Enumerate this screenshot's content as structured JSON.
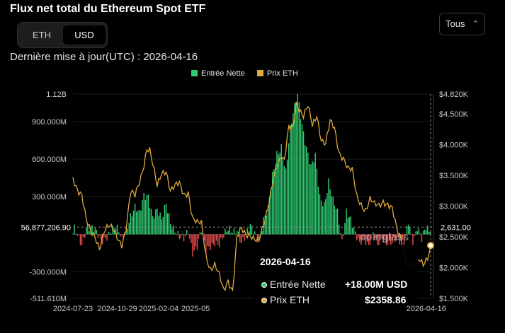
{
  "header": {
    "title": "Flux net total du Ethereum Spot ETF",
    "currency_options": [
      "ETH",
      "USD"
    ],
    "currency_selected": "USD",
    "range_label": "Tous",
    "updated_label": "Dernière mise à jour(UTC) : 2026-04-16"
  },
  "legend": {
    "inflow": "Entrée Nette",
    "price": "Prix ETH"
  },
  "colors": {
    "inflow": "#2ecc71",
    "outflow": "#e74c4c",
    "price": "#e0a93b",
    "background": "#000000"
  },
  "watermark": "coinglass",
  "tooltip": {
    "date": "2026-04-16",
    "inflow_label": "Entrée Nette",
    "inflow_value": "+18.00M USD",
    "price_label": "Prix ETH",
    "price_value": "$2358.86"
  },
  "chart_data": {
    "type": "bar+line",
    "title": "Flux net total du Ethereum Spot ETF",
    "x_ticks": [
      "2024-07-23",
      "2024-10-29",
      "2025-02-04",
      "2025-05",
      "2026-04-16"
    ],
    "y_left_ticks": [
      "1.12B",
      "900.000M",
      "600.000M",
      "300.000M",
      "-300.000M",
      "-511.610M"
    ],
    "y_left_tick_values": [
      1120000000,
      900000000,
      600000000,
      300000000,
      -300000000,
      -511610000
    ],
    "y_left_range": [
      -511610000,
      1120000000
    ],
    "y_right_ticks": [
      "$4.820K",
      "$4.500K",
      "$4.000K",
      "$3.500K",
      "$3.000K",
      "$2.500K",
      "$2.000K",
      "$1.500K"
    ],
    "y_right_tick_values": [
      4820,
      4500,
      4000,
      3500,
      3000,
      2500,
      2000,
      1500
    ],
    "y_right_range": [
      1500,
      4820
    ],
    "crosshair": {
      "left_label": "56,877,206.90",
      "left_value": 56877206.9,
      "right_label": "2,631.00",
      "right_value": 2631
    },
    "price_anchors": [
      [
        0,
        3450
      ],
      [
        3,
        3300
      ],
      [
        6,
        3200
      ],
      [
        9,
        2750
      ],
      [
        12,
        2550
      ],
      [
        15,
        2500
      ],
      [
        18,
        2350
      ],
      [
        21,
        2600
      ],
      [
        24,
        2650
      ],
      [
        27,
        2600
      ],
      [
        30,
        2500
      ],
      [
        33,
        2400
      ],
      [
        36,
        2650
      ],
      [
        39,
        3200
      ],
      [
        42,
        3150
      ],
      [
        45,
        3400
      ],
      [
        48,
        3700
      ],
      [
        50,
        3950
      ],
      [
        52,
        3900
      ],
      [
        54,
        3650
      ],
      [
        57,
        3300
      ],
      [
        60,
        3550
      ],
      [
        63,
        3600
      ],
      [
        66,
        3250
      ],
      [
        69,
        3300
      ],
      [
        72,
        3350
      ],
      [
        75,
        3200
      ],
      [
        78,
        3250
      ],
      [
        81,
        2800
      ],
      [
        84,
        2700
      ],
      [
        87,
        2700
      ],
      [
        90,
        2200
      ],
      [
        93,
        2000
      ],
      [
        96,
        2050
      ],
      [
        99,
        1850
      ],
      [
        102,
        1600
      ],
      [
        105,
        1800
      ],
      [
        108,
        1650
      ],
      [
        111,
        2500
      ],
      [
        114,
        2600
      ],
      [
        117,
        2500
      ],
      [
        120,
        2550
      ],
      [
        123,
        2500
      ],
      [
        126,
        2450
      ],
      [
        129,
        2650
      ],
      [
        132,
        2950
      ],
      [
        135,
        3400
      ],
      [
        138,
        3700
      ],
      [
        141,
        3800
      ],
      [
        143,
        3700
      ],
      [
        146,
        4250
      ],
      [
        149,
        4300
      ],
      [
        151,
        4700
      ],
      [
        153,
        4600
      ],
      [
        156,
        4450
      ],
      [
        159,
        4600
      ],
      [
        162,
        4300
      ],
      [
        165,
        4500
      ],
      [
        168,
        4100
      ],
      [
        171,
        4000
      ],
      [
        174,
        4350
      ],
      [
        177,
        4250
      ],
      [
        180,
        3900
      ],
      [
        183,
        3800
      ],
      [
        186,
        3600
      ],
      [
        189,
        3550
      ],
      [
        192,
        3150
      ],
      [
        195,
        3050
      ],
      [
        198,
        2950
      ],
      [
        201,
        3100
      ],
      [
        204,
        3000
      ],
      [
        207,
        3000
      ],
      [
        210,
        3100
      ],
      [
        213,
        3050
      ],
      [
        216,
        2950
      ],
      [
        219,
        2600
      ],
      [
        222,
        2450
      ],
      [
        225,
        2150
      ],
      [
        228,
        2050
      ],
      [
        231,
        2000
      ],
      [
        234,
        2100
      ],
      [
        237,
        2050
      ],
      [
        240,
        2200
      ],
      [
        242,
        2358.86
      ]
    ],
    "flow_anchors": [
      [
        0,
        40
      ],
      [
        6,
        -60
      ],
      [
        9,
        70
      ],
      [
        14,
        20
      ],
      [
        19,
        -40
      ],
      [
        24,
        15
      ],
      [
        29,
        35
      ],
      [
        33,
        -30
      ],
      [
        36,
        60
      ],
      [
        39,
        160
      ],
      [
        42,
        200
      ],
      [
        45,
        140
      ],
      [
        48,
        310
      ],
      [
        51,
        330
      ],
      [
        54,
        150
      ],
      [
        57,
        180
      ],
      [
        60,
        90
      ],
      [
        63,
        250
      ],
      [
        66,
        120
      ],
      [
        69,
        40
      ],
      [
        72,
        -40
      ],
      [
        75,
        -60
      ],
      [
        78,
        30
      ],
      [
        81,
        -120
      ],
      [
        84,
        -80
      ],
      [
        87,
        20
      ],
      [
        90,
        -150
      ],
      [
        93,
        -90
      ],
      [
        96,
        -40
      ],
      [
        99,
        -70
      ],
      [
        102,
        -30
      ],
      [
        105,
        20
      ],
      [
        108,
        30
      ],
      [
        111,
        60
      ],
      [
        114,
        -60
      ],
      [
        117,
        -30
      ],
      [
        120,
        50
      ],
      [
        123,
        20
      ],
      [
        126,
        -20
      ],
      [
        129,
        120
      ],
      [
        132,
        180
      ],
      [
        135,
        450
      ],
      [
        138,
        650
      ],
      [
        141,
        720
      ],
      [
        144,
        500
      ],
      [
        147,
        820
      ],
      [
        150,
        1000
      ],
      [
        152,
        1120
      ],
      [
        155,
        900
      ],
      [
        158,
        700
      ],
      [
        161,
        520
      ],
      [
        164,
        600
      ],
      [
        167,
        300
      ],
      [
        170,
        260
      ],
      [
        173,
        430
      ],
      [
        176,
        250
      ],
      [
        179,
        150
      ],
      [
        182,
        -60
      ],
      [
        185,
        210
      ],
      [
        188,
        130
      ],
      [
        191,
        -20
      ],
      [
        194,
        -100
      ],
      [
        197,
        -40
      ],
      [
        200,
        -60
      ],
      [
        203,
        20
      ],
      [
        206,
        -120
      ],
      [
        209,
        -50
      ],
      [
        212,
        -80
      ],
      [
        215,
        -40
      ],
      [
        218,
        -30
      ],
      [
        221,
        -80
      ],
      [
        224,
        -100
      ],
      [
        227,
        120
      ],
      [
        230,
        -40
      ],
      [
        233,
        60
      ],
      [
        236,
        -60
      ],
      [
        239,
        40
      ],
      [
        242,
        18
      ]
    ],
    "bar_count": 243,
    "tooltip_date": "2026-04-16",
    "tooltip_inflow_musd": 18.0,
    "tooltip_price_usd": 2358.86
  }
}
